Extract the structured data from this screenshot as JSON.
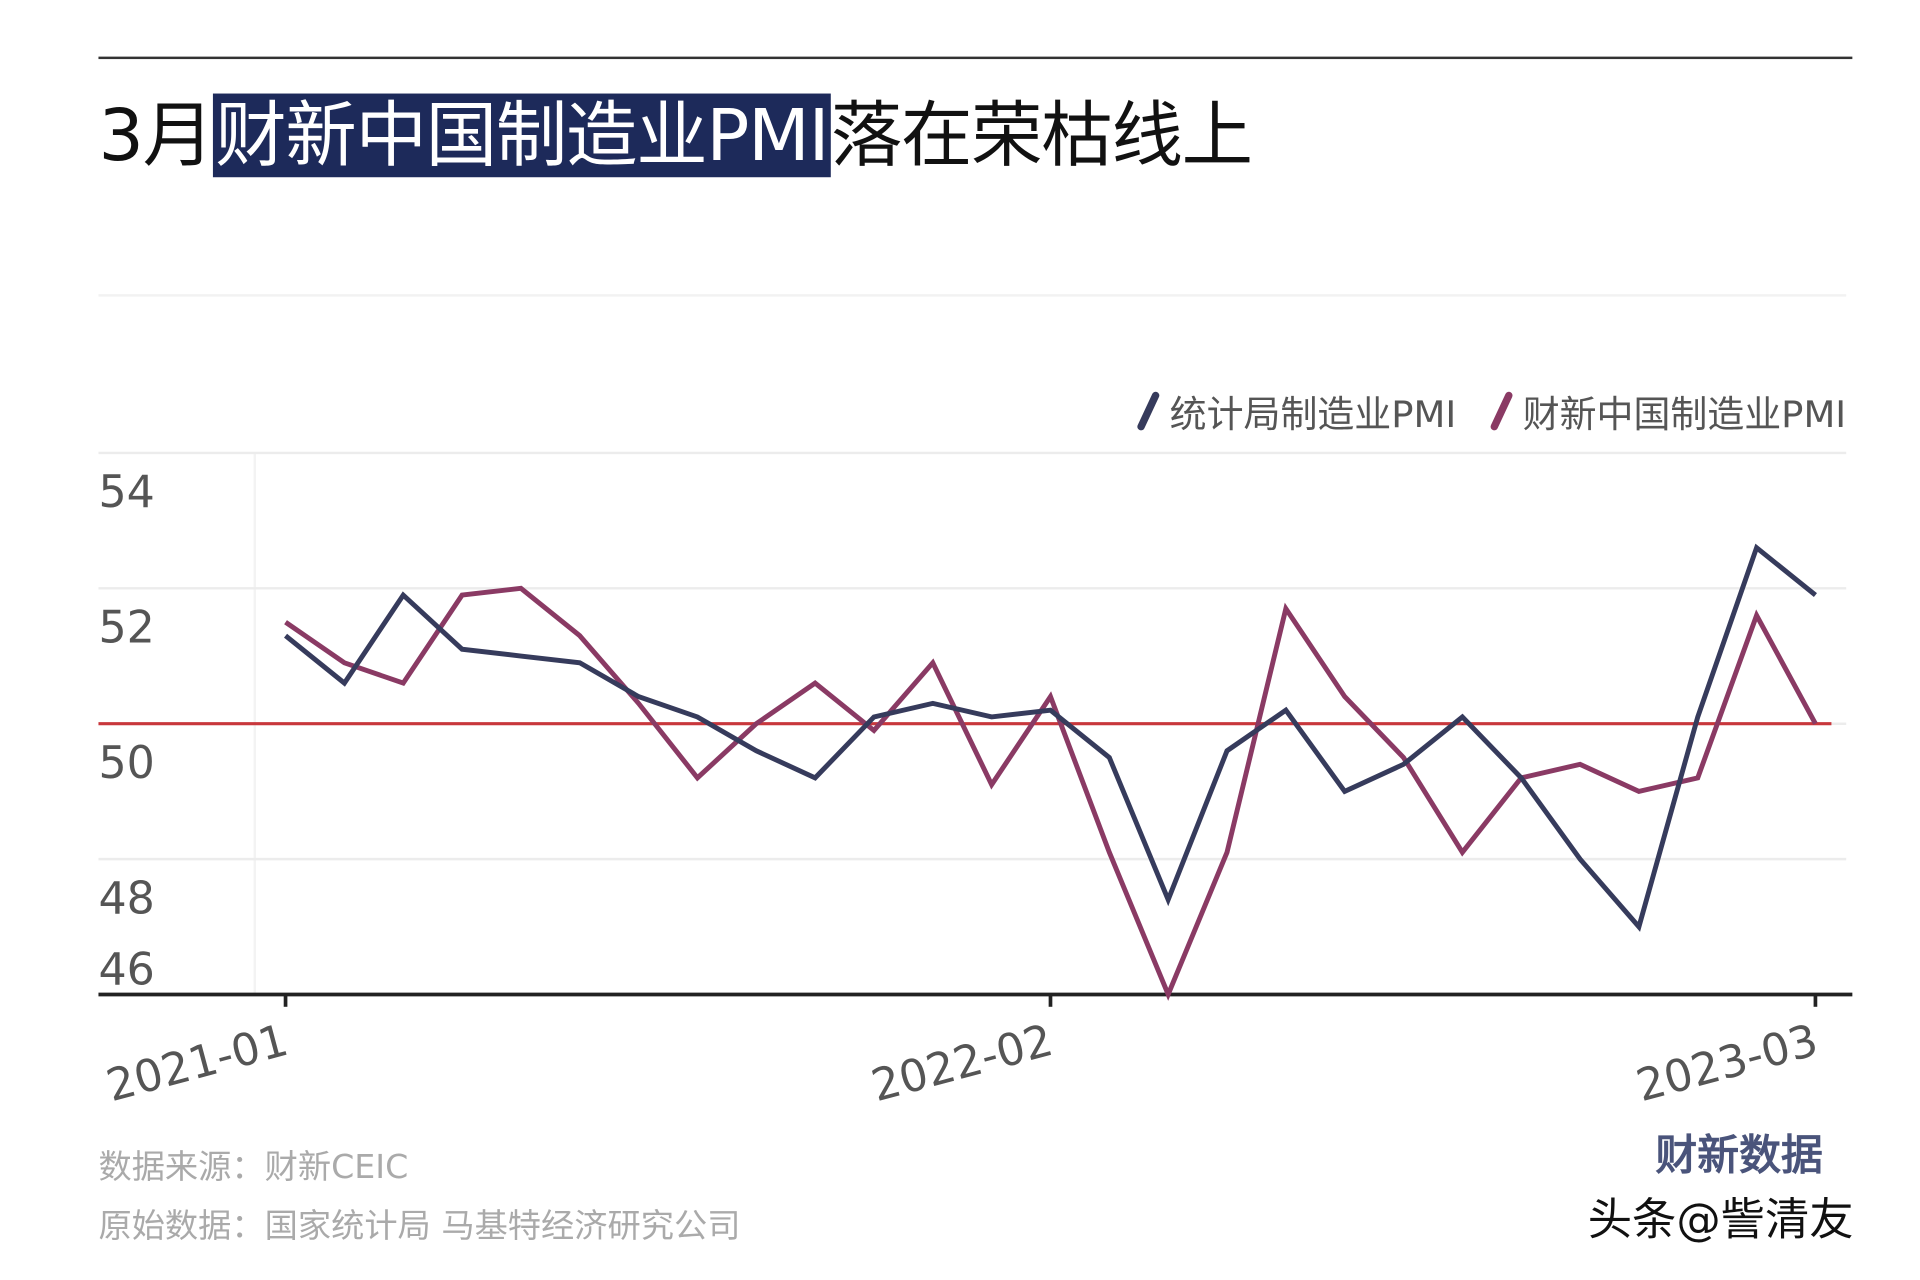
{
  "title": {
    "prefix": "3月",
    "highlight": "财新中国制造业PMI",
    "suffix": "落在荣枯线上"
  },
  "chart_data": {
    "type": "line",
    "x": [
      "2021-01",
      "2021-02",
      "2021-03",
      "2021-04",
      "2021-05",
      "2021-06",
      "2021-07",
      "2021-08",
      "2021-09",
      "2021-10",
      "2021-11",
      "2021-12",
      "2022-01",
      "2022-02",
      "2022-03",
      "2022-04",
      "2022-05",
      "2022-06",
      "2022-07",
      "2022-08",
      "2022-09",
      "2022-10",
      "2022-11",
      "2022-12",
      "2023-01",
      "2023-02",
      "2023-03"
    ],
    "x_tick_labels": [
      "2021-01",
      "2022-02",
      "2023-03"
    ],
    "y_ticks": [
      46,
      48,
      50,
      52,
      54
    ],
    "ylim": [
      46,
      54
    ],
    "reference_line": {
      "value": 50,
      "color": "#c8373c"
    },
    "grid": true,
    "legend_position": "top-right",
    "series": [
      {
        "name": "统计局制造业PMI",
        "color": "#363b5c",
        "values": [
          51.3,
          50.6,
          51.9,
          51.1,
          51.0,
          50.9,
          50.4,
          50.1,
          49.6,
          49.2,
          50.1,
          50.3,
          50.1,
          50.2,
          49.5,
          47.4,
          49.6,
          50.2,
          49.0,
          49.4,
          50.1,
          49.2,
          48.0,
          47.0,
          50.1,
          52.6,
          51.9
        ]
      },
      {
        "name": "财新中国制造业PMI",
        "color": "#8a3a64",
        "values": [
          51.5,
          50.9,
          50.6,
          51.9,
          52.0,
          51.3,
          50.3,
          49.2,
          50.0,
          50.6,
          49.9,
          50.9,
          49.1,
          50.4,
          48.1,
          46.0,
          48.1,
          51.7,
          50.4,
          49.5,
          48.1,
          49.2,
          49.4,
          49.0,
          49.2,
          51.6,
          50.0
        ]
      }
    ]
  },
  "footer": {
    "source": "数据来源：财新CEIC",
    "raw": "原始数据：国家统计局 马基特经济研究公司"
  },
  "watermark": {
    "logo": "财新数据",
    "author": "头条@訾清友"
  }
}
